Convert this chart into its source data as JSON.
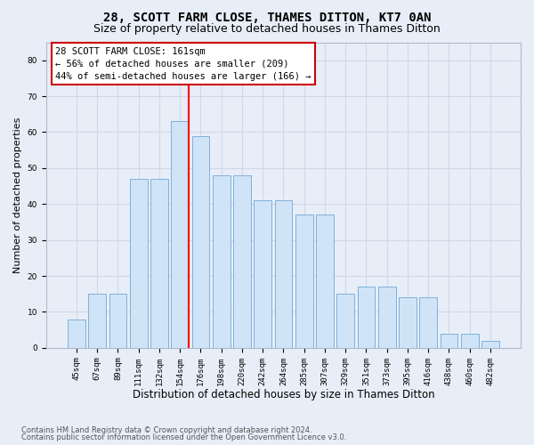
{
  "title": "28, SCOTT FARM CLOSE, THAMES DITTON, KT7 0AN",
  "subtitle": "Size of property relative to detached houses in Thames Ditton",
  "xlabel": "Distribution of detached houses by size in Thames Ditton",
  "ylabel": "Number of detached properties",
  "categories": [
    "45sqm",
    "67sqm",
    "89sqm",
    "111sqm",
    "132sqm",
    "154sqm",
    "176sqm",
    "198sqm",
    "220sqm",
    "242sqm",
    "264sqm",
    "285sqm",
    "307sqm",
    "329sqm",
    "351sqm",
    "373sqm",
    "395sqm",
    "416sqm",
    "438sqm",
    "460sqm",
    "482sqm"
  ],
  "values": [
    8,
    15,
    15,
    47,
    47,
    63,
    59,
    48,
    48,
    41,
    41,
    37,
    37,
    15,
    17,
    17,
    14,
    14,
    4,
    4,
    2
  ],
  "bar_color": "#d0e4f7",
  "bar_edgecolor": "#6fa8d6",
  "red_line_index": 5.42,
  "annotation_text": "28 SCOTT FARM CLOSE: 161sqm\n← 56% of detached houses are smaller (209)\n44% of semi-detached houses are larger (166) →",
  "annotation_box_facecolor": "#ffffff",
  "annotation_box_edgecolor": "#cc0000",
  "ylim": [
    0,
    85
  ],
  "yticks": [
    0,
    10,
    20,
    30,
    40,
    50,
    60,
    70,
    80
  ],
  "footer_line1": "Contains HM Land Registry data © Crown copyright and database right 2024.",
  "footer_line2": "Contains public sector information licensed under the Open Government Licence v3.0.",
  "background_color": "#e8eef8",
  "grid_color": "#d0d8e8",
  "title_fontsize": 10,
  "subtitle_fontsize": 9,
  "xlabel_fontsize": 8.5,
  "ylabel_fontsize": 8,
  "tick_fontsize": 6.5,
  "annotation_fontsize": 7.5,
  "footer_fontsize": 6
}
